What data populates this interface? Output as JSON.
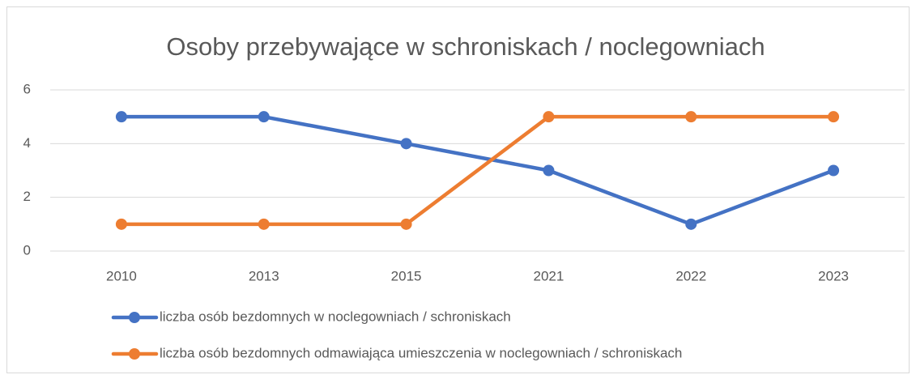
{
  "chart_data": {
    "type": "line",
    "title": "Osoby przebywające w schroniskach / noclegowniach",
    "categories": [
      "2010",
      "2013",
      "2015",
      "2021",
      "2022",
      "2023"
    ],
    "series": [
      {
        "name": "liczba osób bezdomnych w noclegowniach / schroniskach",
        "color": "#4472c4",
        "values": [
          5,
          5,
          4,
          3,
          1,
          3
        ]
      },
      {
        "name": "liczba osób bezdomnych odmawiająca umieszczenia w noclegowniach / schroniskach",
        "color": "#ed7d31",
        "values": [
          1,
          1,
          1,
          5,
          5,
          5
        ]
      }
    ],
    "ylim": [
      0,
      6
    ],
    "yticks": [
      0,
      2,
      4,
      6
    ],
    "grid": true,
    "legend": "bottom"
  }
}
